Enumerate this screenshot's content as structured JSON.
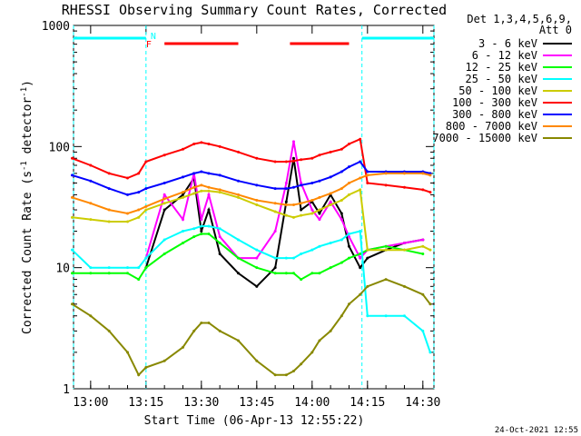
{
  "chart_data": {
    "type": "line",
    "title": "RHESSI Observing Summary Count Rates, Corrected",
    "xlabel": "Start Time (06-Apr-13 12:55:22)",
    "ylabel": "Corrected Count Rate (s⁻¹ detector⁻¹)",
    "ylabel_main": "Corrected Count Rate (s",
    "ylabel_sup1": "-1",
    "ylabel_mid": " detector",
    "ylabel_sup2": "-1",
    "ylabel_end": ")",
    "y_scale": "log",
    "ylim": [
      1,
      1000
    ],
    "xlim": [
      "12:55:22",
      "14:33:00"
    ],
    "x_ticks": [
      "13:00",
      "13:15",
      "13:30",
      "13:45",
      "14:00",
      "14:15",
      "14:30"
    ],
    "y_ticks": [
      "1",
      "10",
      "100",
      "1000"
    ],
    "legend_header": "Det 1,3,4,5,6,9,",
    "legend_subheader": "Att 0",
    "legend_position": "right",
    "footer_date": "24-Oct-2021 12:55",
    "flags": [
      {
        "label": "N",
        "color": "#00ffff"
      },
      {
        "label": "F",
        "color": "#ff0000"
      }
    ],
    "night_intervals": [
      [
        "12:55:22",
        "13:15:00"
      ],
      [
        "14:13:30",
        "14:33:00"
      ]
    ],
    "flare_intervals": [
      [
        "13:20:00",
        "13:40:00"
      ],
      [
        "13:54:00",
        "14:10:00"
      ]
    ],
    "x": [
      "12:55",
      "13:00",
      "13:05",
      "13:10",
      "13:13",
      "13:15",
      "13:20",
      "13:25",
      "13:28",
      "13:30",
      "13:32",
      "13:35",
      "13:40",
      "13:45",
      "13:50",
      "13:53",
      "13:55",
      "13:57",
      "14:00",
      "14:02",
      "14:05",
      "14:08",
      "14:10",
      "14:13",
      "14:15",
      "14:20",
      "14:25",
      "14:30",
      "14:32"
    ],
    "series": [
      {
        "name": "3 - 6 keV",
        "color": "#000000",
        "values": [
          null,
          null,
          null,
          null,
          null,
          10,
          30,
          40,
          55,
          20,
          30,
          13,
          9,
          7,
          10,
          35,
          80,
          30,
          35,
          28,
          40,
          28,
          15,
          10,
          12,
          14,
          16,
          17,
          null
        ]
      },
      {
        "name": "6 - 12 keV",
        "color": "#ff00ff",
        "values": [
          null,
          null,
          null,
          null,
          null,
          12,
          40,
          25,
          60,
          25,
          40,
          18,
          12,
          12,
          20,
          50,
          110,
          50,
          30,
          25,
          35,
          25,
          18,
          12,
          14,
          15,
          16,
          17,
          null
        ]
      },
      {
        "name": "12 - 25 keV",
        "color": "#00ff00",
        "values": [
          9,
          9,
          9,
          9,
          8,
          10,
          13,
          16,
          18,
          19,
          19,
          16,
          12,
          10,
          9,
          9,
          9,
          8,
          9,
          9,
          10,
          11,
          12,
          13,
          14,
          15,
          14,
          13,
          null
        ]
      },
      {
        "name": "25 - 50 keV",
        "color": "#00ffff",
        "values": [
          14,
          10,
          10,
          10,
          10,
          12,
          17,
          20,
          21,
          22,
          22,
          21,
          17,
          14,
          12,
          12,
          12,
          13,
          14,
          15,
          16,
          17,
          19,
          20,
          4,
          4,
          4,
          3,
          2
        ]
      },
      {
        "name": "50 - 100 keV",
        "color": "#cccc00",
        "values": [
          26,
          25,
          24,
          24,
          26,
          30,
          34,
          38,
          41,
          43,
          43,
          42,
          38,
          33,
          29,
          27,
          26,
          27,
          28,
          30,
          33,
          36,
          40,
          44,
          14,
          14,
          14,
          15,
          14
        ]
      },
      {
        "name": "100 - 300 keV",
        "color": "#ff0000",
        "values": [
          80,
          70,
          60,
          55,
          60,
          75,
          85,
          95,
          105,
          108,
          105,
          100,
          90,
          80,
          75,
          75,
          76,
          78,
          80,
          85,
          90,
          95,
          105,
          115,
          50,
          48,
          46,
          44,
          42
        ]
      },
      {
        "name": "300 - 800 keV",
        "color": "#0000ff",
        "values": [
          58,
          52,
          45,
          40,
          42,
          45,
          50,
          56,
          60,
          62,
          60,
          58,
          52,
          48,
          45,
          45,
          46,
          48,
          50,
          52,
          56,
          62,
          68,
          75,
          62,
          62,
          62,
          62,
          60
        ]
      },
      {
        "name": "800 - 7000 keV",
        "color": "#ff8800",
        "values": [
          38,
          34,
          30,
          28,
          30,
          32,
          37,
          42,
          46,
          48,
          46,
          44,
          40,
          36,
          34,
          33,
          33,
          34,
          36,
          38,
          41,
          45,
          50,
          55,
          58,
          60,
          60,
          60,
          58
        ]
      },
      {
        "name": "7000 - 15000 keV",
        "color": "#888800",
        "values": [
          5,
          4,
          3,
          2,
          1.3,
          1.5,
          1.7,
          2.2,
          3,
          3.5,
          3.5,
          3,
          2.5,
          1.7,
          1.3,
          1.3,
          1.4,
          1.6,
          2,
          2.5,
          3,
          4,
          5,
          6,
          7,
          8,
          7,
          6,
          5
        ]
      }
    ]
  }
}
